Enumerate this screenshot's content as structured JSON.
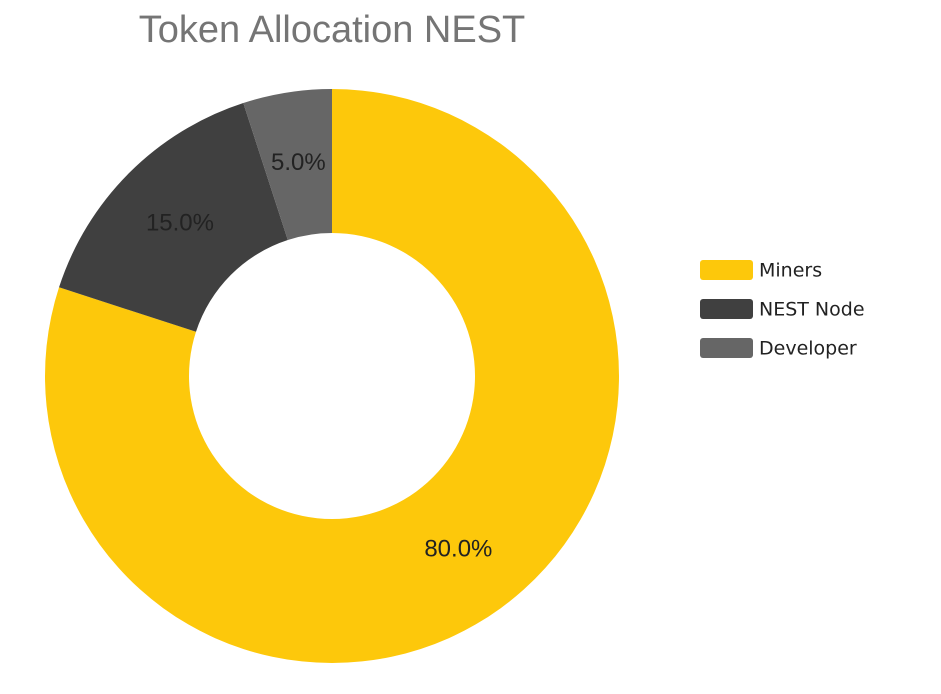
{
  "chart_data": {
    "type": "donut",
    "title": "Token Allocation NEST",
    "categories": [
      "Miners",
      "NEST Node",
      "Developer"
    ],
    "values": [
      80,
      15,
      5
    ],
    "value_labels": [
      "80.0%",
      "15.0%",
      "5.0%"
    ],
    "colors": [
      "#fdc80b",
      "#404040",
      "#666666"
    ],
    "legend": "right"
  }
}
